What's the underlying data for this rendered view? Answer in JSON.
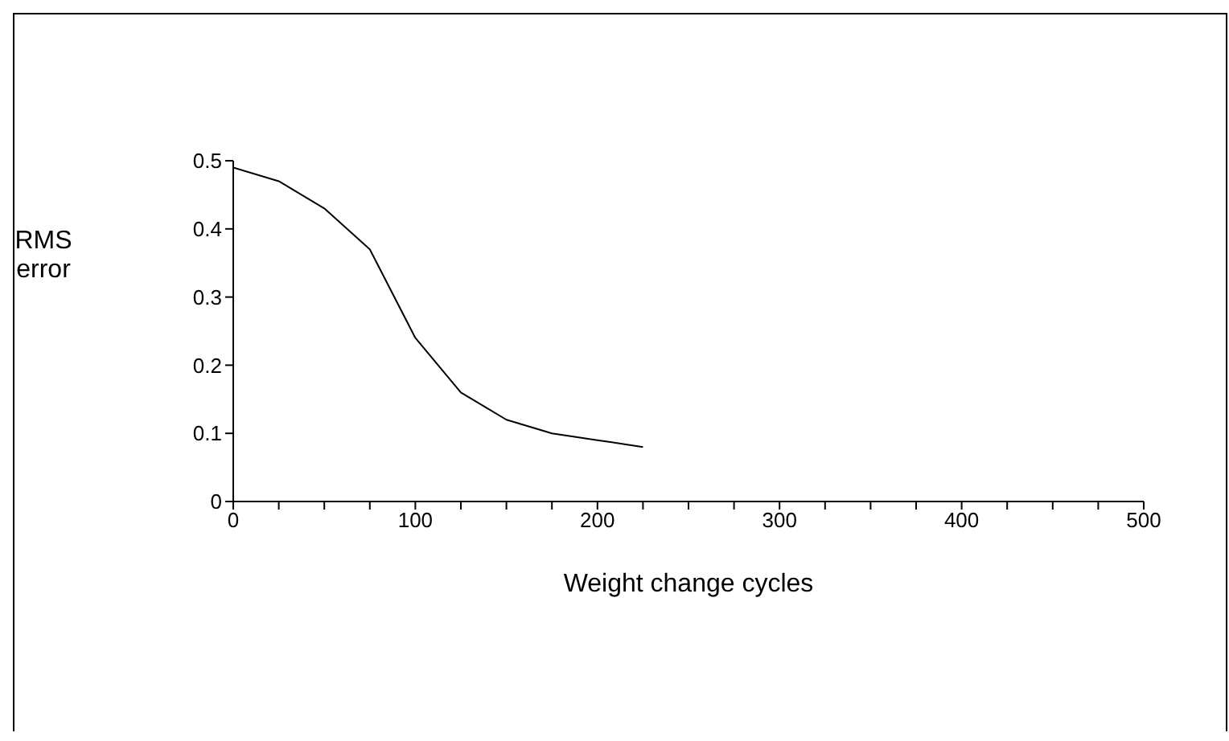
{
  "chart_data": {
    "type": "line",
    "xlabel": "Weight change cycles",
    "ylabel": "RMS error",
    "x": [
      0,
      25,
      50,
      75,
      100,
      125,
      150,
      175,
      200,
      225
    ],
    "series": [
      {
        "color": "#000000",
        "values": [
          0.49,
          0.47,
          0.43,
          0.37,
          0.24,
          0.16,
          0.12,
          0.1,
          0.09,
          0.08
        ]
      }
    ],
    "xlim": [
      0,
      500
    ],
    "xticks": [
      0,
      {
        "value": 25,
        "label": null
      },
      {
        "value": 50,
        "label": null
      },
      {
        "value": 75,
        "label": null
      },
      100,
      {
        "value": 125,
        "label": null
      },
      {
        "value": 150,
        "label": null
      },
      {
        "value": 175,
        "label": null
      },
      200,
      {
        "value": 225,
        "label": null
      },
      {
        "value": 250,
        "label": null
      },
      {
        "value": 275,
        "label": null
      },
      300,
      {
        "value": 325,
        "label": null
      },
      {
        "value": 350,
        "label": null
      },
      {
        "value": 375,
        "label": null
      },
      400,
      {
        "value": 425,
        "label": null
      },
      {
        "value": 450,
        "label": null
      },
      {
        "value": 475,
        "label": null
      },
      500
    ],
    "ylim": [
      0,
      0.5
    ],
    "yticks": [
      0,
      0.1,
      0.2,
      0.3,
      0.4,
      0.5
    ],
    "grid": false,
    "legend": false,
    "marker": "none",
    "line_style": "solid"
  }
}
